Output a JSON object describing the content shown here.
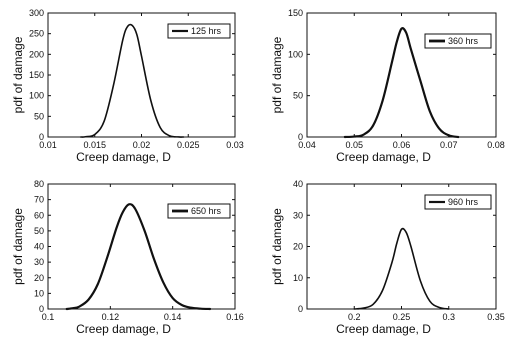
{
  "chart_data": [
    {
      "type": "line",
      "xlabel": "Creep damage, D",
      "ylabel": "pdf of damage",
      "xlim": [
        0.01,
        0.03
      ],
      "ylim": [
        0,
        300
      ],
      "xticks": [
        "0.01",
        "0.015",
        "0.02",
        "0.025",
        "0.03"
      ],
      "yticks": [
        "0",
        "50",
        "100",
        "150",
        "200",
        "250",
        "300"
      ],
      "legend_position": "top-right",
      "series": [
        {
          "name": "125 hrs",
          "color": "#111111",
          "line_style": "thin",
          "x": [
            0.0135,
            0.014,
            0.015,
            0.016,
            0.017,
            0.018,
            0.0185,
            0.019,
            0.0195,
            0.02,
            0.021,
            0.022,
            0.023,
            0.024,
            0.0245
          ],
          "y": [
            0,
            0.6,
            6,
            38,
            125,
            235,
            267,
            270,
            248,
            196,
            88,
            23,
            3,
            0.2,
            0
          ]
        }
      ]
    },
    {
      "type": "line",
      "xlabel": "Creep damage, D",
      "ylabel": "pdf of damage",
      "xlim": [
        0.04,
        0.08
      ],
      "ylim": [
        0,
        150
      ],
      "xticks": [
        "0.04",
        "0.05",
        "0.06",
        "0.07",
        "0.08"
      ],
      "yticks": [
        "0",
        "50",
        "100",
        "150"
      ],
      "legend_position": "top-right",
      "series": [
        {
          "name": "360 hrs",
          "color": "#111111",
          "line_style": "thick",
          "x": [
            0.048,
            0.05,
            0.052,
            0.054,
            0.056,
            0.058,
            0.059,
            0.06,
            0.061,
            0.062,
            0.064,
            0.066,
            0.068,
            0.07,
            0.072
          ],
          "y": [
            0,
            0.5,
            3,
            14,
            44,
            91,
            115,
            131,
            126,
            106,
            68,
            31,
            10,
            2,
            0
          ]
        }
      ]
    },
    {
      "type": "line",
      "xlabel": "Creep damage, D",
      "ylabel": "pdf of damage",
      "xlim": [
        0.1,
        0.16
      ],
      "ylim": [
        0,
        80
      ],
      "xticks": [
        "0.1",
        "0.12",
        "0.14",
        "0.16"
      ],
      "yticks": [
        "0",
        "10",
        "20",
        "30",
        "40",
        "50",
        "60",
        "70",
        "80"
      ],
      "legend_position": "top-right",
      "series": [
        {
          "name": "650 hrs",
          "color": "#111111",
          "line_style": "thick",
          "x": [
            0.106,
            0.108,
            0.11,
            0.113,
            0.116,
            0.119,
            0.122,
            0.124,
            0.126,
            0.128,
            0.131,
            0.134,
            0.137,
            0.14,
            0.143,
            0.146,
            0.149,
            0.152
          ],
          "y": [
            0,
            0.5,
            1.5,
            6,
            16,
            33,
            52,
            62,
            67,
            64,
            50,
            32,
            17,
            7,
            2.5,
            0.8,
            0.2,
            0
          ]
        }
      ]
    },
    {
      "type": "line",
      "xlabel": "Creep damage, D",
      "ylabel": "pdf of damage",
      "xlim": [
        0.15,
        0.35
      ],
      "ylim": [
        0,
        40
      ],
      "xticks": [
        "0.2",
        "0.25",
        "0.3",
        "0.35"
      ],
      "yticks": [
        "0",
        "10",
        "20",
        "30",
        "40"
      ],
      "legend_position": "top-right",
      "series": [
        {
          "name": "960 hrs",
          "color": "#111111",
          "line_style": "thin",
          "x": [
            0.2,
            0.21,
            0.22,
            0.23,
            0.24,
            0.245,
            0.25,
            0.255,
            0.26,
            0.27,
            0.28,
            0.29,
            0.3
          ],
          "y": [
            0,
            0.3,
            1.5,
            6,
            15,
            21,
            25.5,
            24.5,
            20,
            9,
            2.5,
            0.5,
            0
          ]
        }
      ]
    }
  ]
}
